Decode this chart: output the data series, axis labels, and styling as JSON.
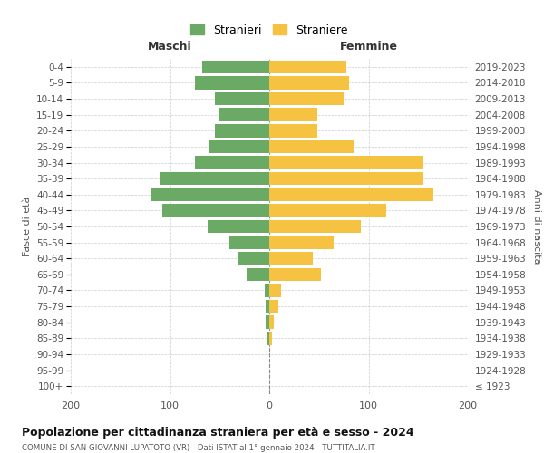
{
  "age_groups": [
    "100+",
    "95-99",
    "90-94",
    "85-89",
    "80-84",
    "75-79",
    "70-74",
    "65-69",
    "60-64",
    "55-59",
    "50-54",
    "45-49",
    "40-44",
    "35-39",
    "30-34",
    "25-29",
    "20-24",
    "15-19",
    "10-14",
    "5-9",
    "0-4"
  ],
  "birth_years": [
    "≤ 1923",
    "1924-1928",
    "1929-1933",
    "1934-1938",
    "1939-1943",
    "1944-1948",
    "1949-1953",
    "1954-1958",
    "1959-1963",
    "1964-1968",
    "1969-1973",
    "1974-1978",
    "1979-1983",
    "1984-1988",
    "1989-1993",
    "1994-1998",
    "1999-2003",
    "2004-2008",
    "2009-2013",
    "2014-2018",
    "2019-2023"
  ],
  "males": [
    0,
    0,
    0,
    3,
    4,
    4,
    5,
    23,
    32,
    40,
    62,
    108,
    120,
    110,
    75,
    60,
    55,
    50,
    55,
    75,
    68
  ],
  "females": [
    0,
    0,
    0,
    3,
    5,
    9,
    12,
    52,
    44,
    65,
    92,
    118,
    165,
    155,
    155,
    85,
    48,
    48,
    75,
    80,
    78
  ],
  "male_color": "#6aaa64",
  "female_color": "#f5c242",
  "title": "Popolazione per cittadinanza straniera per età e sesso - 2024",
  "subtitle": "COMUNE DI SAN GIOVANNI LUPATOTO (VR) - Dati ISTAT al 1° gennaio 2024 - TUTTITALIA.IT",
  "xlabel_left": "Maschi",
  "xlabel_right": "Femmine",
  "ylabel_left": "Fasce di età",
  "ylabel_right": "Anni di nascita",
  "legend_male": "Stranieri",
  "legend_female": "Straniere",
  "xlim": 200,
  "background_color": "#ffffff",
  "bar_height": 0.82
}
